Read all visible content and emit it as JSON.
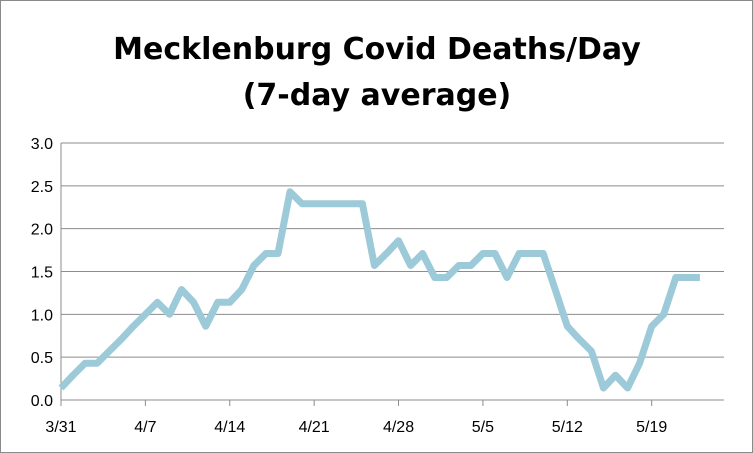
{
  "chart_data": {
    "type": "line",
    "title_lines": [
      "Mecklenburg Covid Deaths/Day",
      "(7-day average)"
    ],
    "xlabel": "",
    "ylabel": "",
    "ylim": [
      0,
      3
    ],
    "y_ticks": [
      "0.0",
      "0.5",
      "1.0",
      "1.5",
      "2.0",
      "2.5",
      "3.0"
    ],
    "x_ticks": [
      {
        "label": "3/31",
        "x": "3/31"
      },
      {
        "label": "4/7",
        "x": "4/7"
      },
      {
        "label": "4/14",
        "x": "4/14"
      },
      {
        "label": "4/21",
        "x": "4/21"
      },
      {
        "label": "4/28",
        "x": "4/28"
      },
      {
        "label": "5/5",
        "x": "5/5"
      },
      {
        "label": "5/12",
        "x": "5/12"
      },
      {
        "label": "5/19",
        "x": "5/19"
      }
    ],
    "grid": true,
    "legend": "none",
    "line_color": "#9dcad8",
    "series": [
      {
        "x": [
          "3/31",
          "4/1",
          "4/2",
          "4/3",
          "4/4",
          "4/5",
          "4/6",
          "4/7",
          "4/8",
          "4/9",
          "4/10",
          "4/11",
          "4/12",
          "4/13",
          "4/14",
          "4/15",
          "4/16",
          "4/17",
          "4/18",
          "4/19",
          "4/20",
          "4/21",
          "4/22",
          "4/23",
          "4/24",
          "4/25",
          "4/26",
          "4/27",
          "4/28",
          "4/29",
          "4/30",
          "5/1",
          "5/2",
          "5/3",
          "5/4",
          "5/5",
          "5/6",
          "5/7",
          "5/8",
          "5/9",
          "5/10",
          "5/11",
          "5/12",
          "5/13",
          "5/14",
          "5/15",
          "5/16",
          "5/17",
          "5/18",
          "5/19",
          "5/20",
          "5/21",
          "5/22",
          "5/23"
        ],
        "values": [
          0.14,
          0.29,
          0.43,
          0.43,
          0.57,
          0.71,
          0.86,
          1.0,
          1.14,
          1.0,
          1.29,
          1.14,
          0.86,
          1.14,
          1.14,
          1.29,
          1.57,
          1.71,
          1.71,
          2.43,
          2.29,
          2.29,
          2.29,
          2.29,
          2.29,
          2.29,
          1.57,
          1.71,
          1.86,
          1.57,
          1.71,
          1.43,
          1.43,
          1.57,
          1.57,
          1.71,
          1.71,
          1.43,
          1.71,
          1.71,
          1.71,
          1.29,
          0.86,
          0.71,
          0.57,
          0.14,
          0.29,
          0.14,
          0.43,
          0.86,
          1.0,
          1.43,
          1.43,
          1.43
        ]
      }
    ]
  }
}
